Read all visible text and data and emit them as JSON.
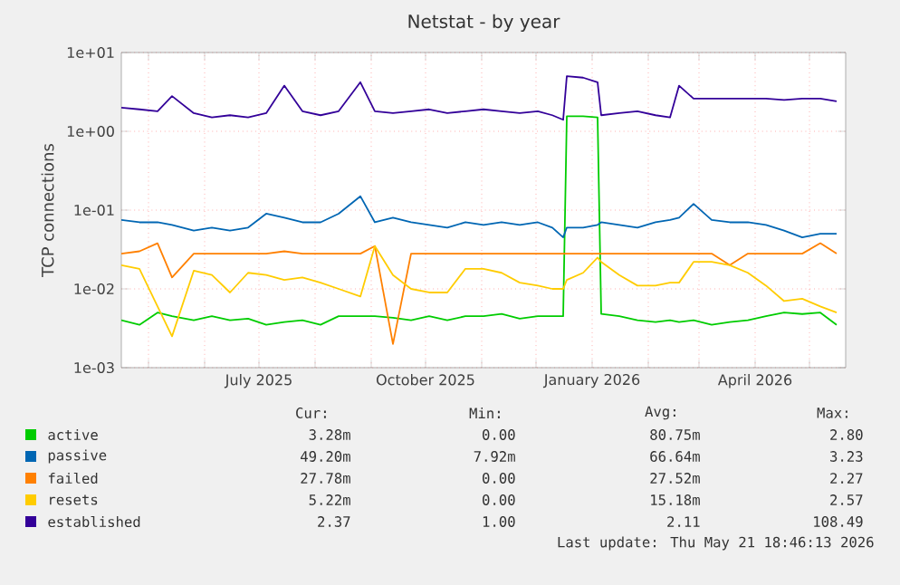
{
  "chart_data": {
    "type": "line",
    "title": "Netstat - by year",
    "ylabel": "TCP connections",
    "log": "y",
    "grid": true,
    "legend": "bottom",
    "xlim": [
      "2025-04-16",
      "2026-05-21"
    ],
    "xticks": [
      {
        "value": "2025-05-01",
        "label": null
      },
      {
        "value": "2025-06-01",
        "label": null
      },
      {
        "value": "2025-07-01",
        "label": "July 2025"
      },
      {
        "value": "2025-08-01",
        "label": null
      },
      {
        "value": "2025-09-01",
        "label": null
      },
      {
        "value": "2025-10-01",
        "label": "October 2025"
      },
      {
        "value": "2025-11-01",
        "label": null
      },
      {
        "value": "2025-12-01",
        "label": null
      },
      {
        "value": "2026-01-01",
        "label": "January 2026"
      },
      {
        "value": "2026-02-01",
        "label": null
      },
      {
        "value": "2026-03-01",
        "label": null
      },
      {
        "value": "2026-04-01",
        "label": "April 2026"
      },
      {
        "value": "2026-05-01",
        "label": null
      }
    ],
    "ylim": [
      0.001,
      10
    ],
    "yticks": [
      {
        "value": 0.001,
        "label": "1e-03"
      },
      {
        "value": 0.01,
        "label": "1e-02"
      },
      {
        "value": 0.1,
        "label": "1e-01"
      },
      {
        "value": 1,
        "label": "1e+00"
      },
      {
        "value": 10,
        "label": "1e+01"
      }
    ],
    "x": [
      "2025-04-16",
      "2025-04-26",
      "2025-05-06",
      "2025-05-14",
      "2025-05-26",
      "2025-06-05",
      "2025-06-15",
      "2025-06-25",
      "2025-07-05",
      "2025-07-15",
      "2025-07-25",
      "2025-08-04",
      "2025-08-14",
      "2025-08-26",
      "2025-09-03",
      "2025-09-13",
      "2025-09-23",
      "2025-10-03",
      "2025-10-13",
      "2025-10-23",
      "2025-11-02",
      "2025-11-12",
      "2025-11-22",
      "2025-12-02",
      "2025-12-10",
      "2025-12-16",
      "2025-12-18",
      "2025-12-27",
      "2026-01-04",
      "2026-01-06",
      "2026-01-16",
      "2026-01-26",
      "2026-02-05",
      "2026-02-13",
      "2026-02-18",
      "2026-02-26",
      "2026-03-08",
      "2026-03-18",
      "2026-03-28",
      "2026-04-07",
      "2026-04-17",
      "2026-04-27",
      "2026-05-07",
      "2026-05-16"
    ],
    "series": [
      {
        "name": "active",
        "color": "#00cc00",
        "values": [
          0.004,
          0.0035,
          0.005,
          0.0045,
          0.004,
          0.0045,
          0.004,
          0.0042,
          0.0035,
          0.0038,
          0.004,
          0.0035,
          0.0045,
          0.0045,
          0.0045,
          0.0043,
          0.004,
          0.0045,
          0.004,
          0.0045,
          0.0045,
          0.0048,
          0.0042,
          0.0045,
          0.0045,
          0.0045,
          1.55,
          1.55,
          1.5,
          0.0048,
          0.0045,
          0.004,
          0.0038,
          0.004,
          0.0038,
          0.004,
          0.0035,
          0.0038,
          0.004,
          0.0045,
          0.005,
          0.0048,
          0.005,
          0.0035
        ]
      },
      {
        "name": "passive",
        "color": "#0066b3",
        "values": [
          0.075,
          0.07,
          0.07,
          0.065,
          0.055,
          0.06,
          0.055,
          0.06,
          0.09,
          0.08,
          0.07,
          0.07,
          0.09,
          0.15,
          0.07,
          0.08,
          0.07,
          0.065,
          0.06,
          0.07,
          0.065,
          0.07,
          0.065,
          0.07,
          0.06,
          0.045,
          0.06,
          0.06,
          0.065,
          0.07,
          0.065,
          0.06,
          0.07,
          0.075,
          0.08,
          0.12,
          0.075,
          0.07,
          0.07,
          0.065,
          0.055,
          0.045,
          0.05,
          0.05
        ]
      },
      {
        "name": "failed",
        "color": "#ff8000",
        "values": [
          0.028,
          0.03,
          0.038,
          0.014,
          0.028,
          0.028,
          0.028,
          0.028,
          0.028,
          0.03,
          0.028,
          0.028,
          0.028,
          0.028,
          0.035,
          0.002,
          0.028,
          0.028,
          0.028,
          0.028,
          0.028,
          0.028,
          0.028,
          0.028,
          0.028,
          0.028,
          0.028,
          0.028,
          0.028,
          0.028,
          0.028,
          0.028,
          0.028,
          0.028,
          0.028,
          0.028,
          0.028,
          0.02,
          0.028,
          0.028,
          0.028,
          0.028,
          0.038,
          0.028
        ]
      },
      {
        "name": "resets",
        "color": "#ffcc00",
        "values": [
          0.02,
          0.018,
          0.006,
          0.0025,
          0.017,
          0.015,
          0.009,
          0.016,
          0.015,
          0.013,
          0.014,
          0.012,
          0.01,
          0.008,
          0.035,
          0.015,
          0.01,
          0.009,
          0.009,
          0.018,
          0.018,
          0.016,
          0.012,
          0.011,
          0.01,
          0.01,
          0.013,
          0.016,
          0.025,
          0.022,
          0.015,
          0.011,
          0.011,
          0.012,
          0.012,
          0.022,
          0.022,
          0.02,
          0.016,
          0.011,
          0.007,
          0.0075,
          0.006,
          0.005
        ]
      },
      {
        "name": "established",
        "color": "#330099",
        "values": [
          2.0,
          1.9,
          1.8,
          2.8,
          1.7,
          1.5,
          1.6,
          1.5,
          1.7,
          3.8,
          1.8,
          1.6,
          1.8,
          4.2,
          1.8,
          1.7,
          1.8,
          1.9,
          1.7,
          1.8,
          1.9,
          1.8,
          1.7,
          1.8,
          1.6,
          1.4,
          5.0,
          4.8,
          4.2,
          1.6,
          1.7,
          1.8,
          1.6,
          1.5,
          3.8,
          2.6,
          2.6,
          2.6,
          2.6,
          2.6,
          2.5,
          2.6,
          2.6,
          2.4
        ]
      }
    ],
    "annotations": [
      "Cur:",
      "Min:",
      "Avg:",
      "Max:",
      "3.28m",
      "0.00",
      "80.75m",
      "2.80",
      "49.20m",
      "7.92m",
      "66.64m",
      "3.23",
      "27.78m",
      "0.00",
      "27.52m",
      "2.27",
      "5.22m",
      "0.00",
      "15.18m",
      "2.57",
      "2.37",
      "1.00",
      "2.11",
      "108.49",
      "Last update: Thu May 21 18:46:13 2026"
    ]
  }
}
